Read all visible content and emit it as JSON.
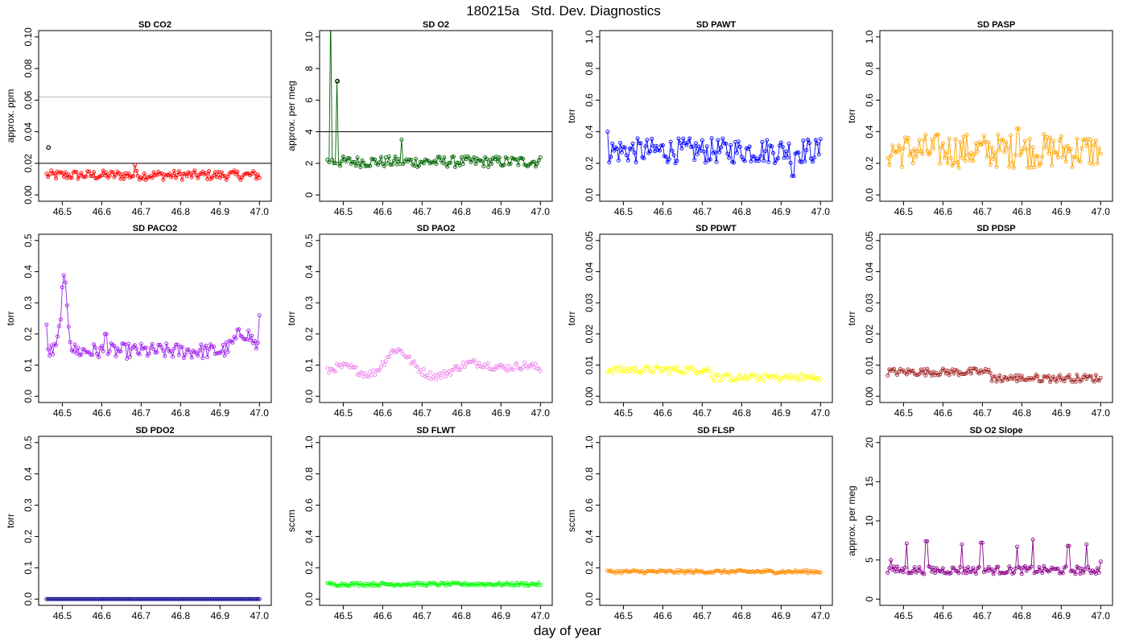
{
  "page": {
    "title": "180215a   Std. Dev. Diagnostics",
    "xlabel": "day of year"
  },
  "chart_data": [
    {
      "type": "line",
      "title": "SD CO2",
      "ylabel": "approx. ppm",
      "color": "#ff0000",
      "xlim": [
        46.44,
        47.03
      ],
      "xticks": [
        46.5,
        46.6,
        46.7,
        46.8,
        46.9,
        47.0
      ],
      "ylim": [
        -0.004,
        0.104
      ],
      "yticks": [
        0.0,
        0.02,
        0.04,
        0.06,
        0.08,
        0.1
      ],
      "hlines": [
        {
          "y": 0.02,
          "color": "#000000"
        },
        {
          "y": 0.062,
          "color": "#bbbbbb"
        }
      ],
      "highlight": [
        {
          "x": 46.465,
          "y": 0.03
        }
      ],
      "gaps": [
        [
          46.47,
          46.475
        ]
      ],
      "profile": {
        "type": "noise",
        "base": 0.0125,
        "amp": 0.003,
        "spikes": [
          [
            46.685,
            0.019
          ]
        ]
      }
    },
    {
      "type": "line",
      "title": "SD O2",
      "ylabel": "approx. per meg",
      "color": "#006400",
      "xlim": [
        46.44,
        47.03
      ],
      "xticks": [
        46.5,
        46.6,
        46.7,
        46.8,
        46.9,
        47.0
      ],
      "ylim": [
        -0.4,
        10.4
      ],
      "yticks": [
        0,
        2,
        4,
        6,
        8,
        10
      ],
      "hlines": [
        {
          "y": 4,
          "color": "#000000"
        }
      ],
      "highlight": [
        {
          "x": 46.485,
          "y": 7.2
        }
      ],
      "gaps": [
        [
          46.61,
          46.615
        ]
      ],
      "profile": {
        "type": "noise",
        "base": 2.1,
        "amp": 0.35,
        "spikes": [
          [
            46.468,
            11.5
          ],
          [
            46.485,
            7.2
          ],
          [
            46.647,
            3.5
          ]
        ]
      }
    },
    {
      "type": "line",
      "title": "SD PAWT",
      "ylabel": "torr",
      "color": "#0000ff",
      "xlim": [
        46.44,
        47.03
      ],
      "xticks": [
        46.5,
        46.6,
        46.7,
        46.8,
        46.9,
        47.0
      ],
      "ylim": [
        -0.04,
        1.04
      ],
      "yticks": [
        0.0,
        0.2,
        0.4,
        0.6,
        0.8,
        1.0
      ],
      "profile": {
        "type": "noise",
        "base": 0.28,
        "amp": 0.08,
        "spikes": [
          [
            46.46,
            0.4
          ],
          [
            46.93,
            0.12
          ]
        ]
      }
    },
    {
      "type": "line",
      "title": "SD PASP",
      "ylabel": "torr",
      "color": "#ffa500",
      "xlim": [
        46.44,
        47.03
      ],
      "xticks": [
        46.5,
        46.6,
        46.7,
        46.8,
        46.9,
        47.0
      ],
      "ylim": [
        -0.04,
        1.04
      ],
      "yticks": [
        0.0,
        0.2,
        0.4,
        0.6,
        0.8,
        1.0
      ],
      "profile": {
        "type": "noise",
        "base": 0.28,
        "amp": 0.11,
        "spikes": [
          [
            46.79,
            0.42
          ]
        ]
      }
    },
    {
      "type": "line",
      "title": "SD PACO2",
      "ylabel": "torr",
      "color": "#a020f0",
      "xlim": [
        46.44,
        47.03
      ],
      "xticks": [
        46.5,
        46.6,
        46.7,
        46.8,
        46.9,
        47.0
      ],
      "ylim": [
        -0.02,
        0.52
      ],
      "yticks": [
        0.0,
        0.1,
        0.2,
        0.3,
        0.4,
        0.5
      ],
      "profile": {
        "type": "bump",
        "base": 0.145,
        "amp": 0.025,
        "bumps": [
          [
            46.505,
            0.22,
            0.012
          ],
          [
            46.96,
            0.06,
            0.03
          ]
        ],
        "spikes": [
          [
            46.46,
            0.23
          ],
          [
            46.61,
            0.2
          ],
          [
            47.0,
            0.26
          ]
        ]
      }
    },
    {
      "type": "scatter",
      "title": "SD PAO2",
      "ylabel": "torr",
      "color": "#ee82ee",
      "xlim": [
        46.44,
        47.03
      ],
      "xticks": [
        46.5,
        46.6,
        46.7,
        46.8,
        46.9,
        47.0
      ],
      "ylim": [
        -0.02,
        0.52
      ],
      "yticks": [
        0.0,
        0.1,
        0.2,
        0.3,
        0.4,
        0.5
      ],
      "profile": {
        "type": "wave",
        "base": 0.08,
        "amp": 0.012,
        "bumps": [
          [
            46.63,
            0.06,
            0.04
          ],
          [
            46.88,
            0.03,
            0.06
          ]
        ]
      }
    },
    {
      "type": "scatter",
      "title": "SD PDWT",
      "ylabel": "torr",
      "color": "#ffff00",
      "xlim": [
        46.44,
        47.03
      ],
      "xticks": [
        46.5,
        46.6,
        46.7,
        46.8,
        46.9,
        47.0
      ],
      "ylim": [
        -0.002,
        0.052
      ],
      "yticks": [
        0.0,
        0.01,
        0.02,
        0.03,
        0.04,
        0.05
      ],
      "profile": {
        "type": "step",
        "base": 0.0085,
        "amp": 0.0012,
        "drop": [
          46.72,
          0.006
        ]
      }
    },
    {
      "type": "line",
      "title": "SD PDSP",
      "ylabel": "torr",
      "color": "#a52a2a",
      "xlim": [
        46.44,
        47.03
      ],
      "xticks": [
        46.5,
        46.6,
        46.7,
        46.8,
        46.9,
        47.0
      ],
      "ylim": [
        -0.002,
        0.052
      ],
      "yticks": [
        0.0,
        0.01,
        0.02,
        0.03,
        0.04,
        0.05
      ],
      "profile": {
        "type": "step",
        "base": 0.0078,
        "amp": 0.0012,
        "drop": [
          46.72,
          0.0058
        ]
      }
    },
    {
      "type": "line",
      "title": "SD PDO2",
      "ylabel": "torr",
      "color": "#00008b",
      "xlim": [
        46.44,
        47.03
      ],
      "xticks": [
        46.5,
        46.6,
        46.7,
        46.8,
        46.9,
        47.0
      ],
      "ylim": [
        -0.02,
        0.52
      ],
      "yticks": [
        0.0,
        0.1,
        0.2,
        0.3,
        0.4,
        0.5
      ],
      "profile": {
        "type": "flat",
        "base": 0.0,
        "amp": 0.0
      }
    },
    {
      "type": "line",
      "title": "SD FLWT",
      "ylabel": "sccm",
      "color": "#00ff00",
      "xlim": [
        46.44,
        47.03
      ],
      "xticks": [
        46.5,
        46.6,
        46.7,
        46.8,
        46.9,
        47.0
      ],
      "ylim": [
        -0.04,
        1.04
      ],
      "yticks": [
        0.0,
        0.2,
        0.4,
        0.6,
        0.8,
        1.0
      ],
      "profile": {
        "type": "noise",
        "base": 0.095,
        "amp": 0.01
      }
    },
    {
      "type": "line",
      "title": "SD FLSP",
      "ylabel": "sccm",
      "color": "#ff8c00",
      "xlim": [
        46.44,
        47.03
      ],
      "xticks": [
        46.5,
        46.6,
        46.7,
        46.8,
        46.9,
        47.0
      ],
      "ylim": [
        -0.04,
        1.04
      ],
      "yticks": [
        0.0,
        0.2,
        0.4,
        0.6,
        0.8,
        1.0
      ],
      "profile": {
        "type": "noise",
        "base": 0.175,
        "amp": 0.01
      }
    },
    {
      "type": "line",
      "title": "SD O2 Slope",
      "ylabel": "approx. per meg",
      "color": "#8b008b",
      "xlim": [
        46.44,
        47.03
      ],
      "xticks": [
        46.5,
        46.6,
        46.7,
        46.8,
        46.9,
        47.0
      ],
      "ylim": [
        -0.8,
        20.8
      ],
      "yticks": [
        0,
        5,
        10,
        15,
        20
      ],
      "profile": {
        "type": "noise",
        "base": 3.7,
        "amp": 0.5,
        "spikes": [
          [
            46.468,
            5.0
          ],
          [
            46.508,
            7.1
          ],
          [
            46.558,
            7.4
          ],
          [
            46.648,
            7.0
          ],
          [
            46.698,
            7.2
          ],
          [
            46.788,
            6.7
          ],
          [
            46.828,
            7.6
          ],
          [
            46.918,
            6.8
          ],
          [
            46.965,
            7.0
          ],
          [
            47.0,
            4.8
          ]
        ]
      }
    }
  ]
}
